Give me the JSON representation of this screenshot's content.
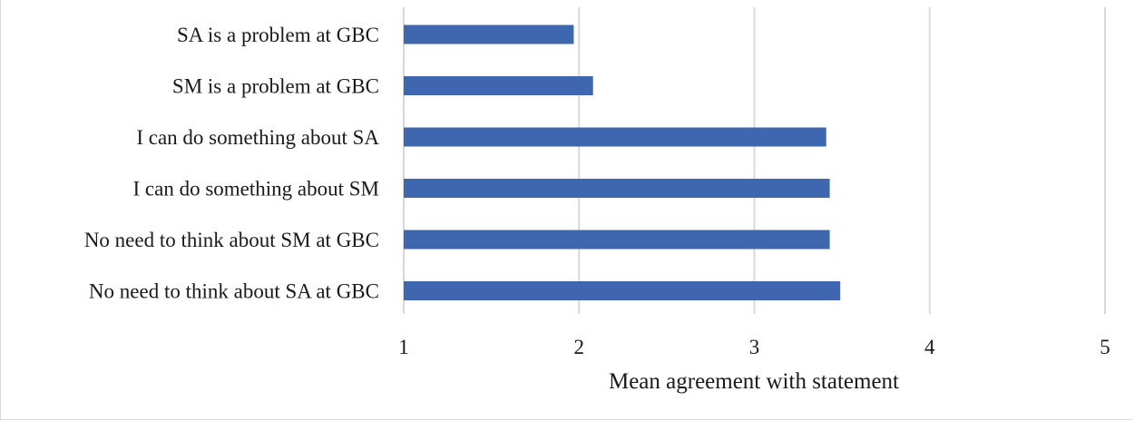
{
  "chart_data": {
    "type": "bar",
    "orientation": "horizontal",
    "categories": [
      "SA is a problem at GBC",
      "SM is a problem at GBC",
      "I can do something about SA",
      "I can do something about SM",
      "No need to think about SM at GBC",
      "No need to think about SA at GBC"
    ],
    "values": [
      1.97,
      2.08,
      3.41,
      3.43,
      3.43,
      3.49
    ],
    "xlabel": "Mean agreement with statement",
    "ylabel": "",
    "xlim": [
      1,
      5
    ],
    "xticks": [
      "1",
      "2",
      "3",
      "4",
      "5"
    ],
    "grid": true,
    "bar_color": "#3f67b0",
    "grid_color": "#d9d9d9"
  }
}
